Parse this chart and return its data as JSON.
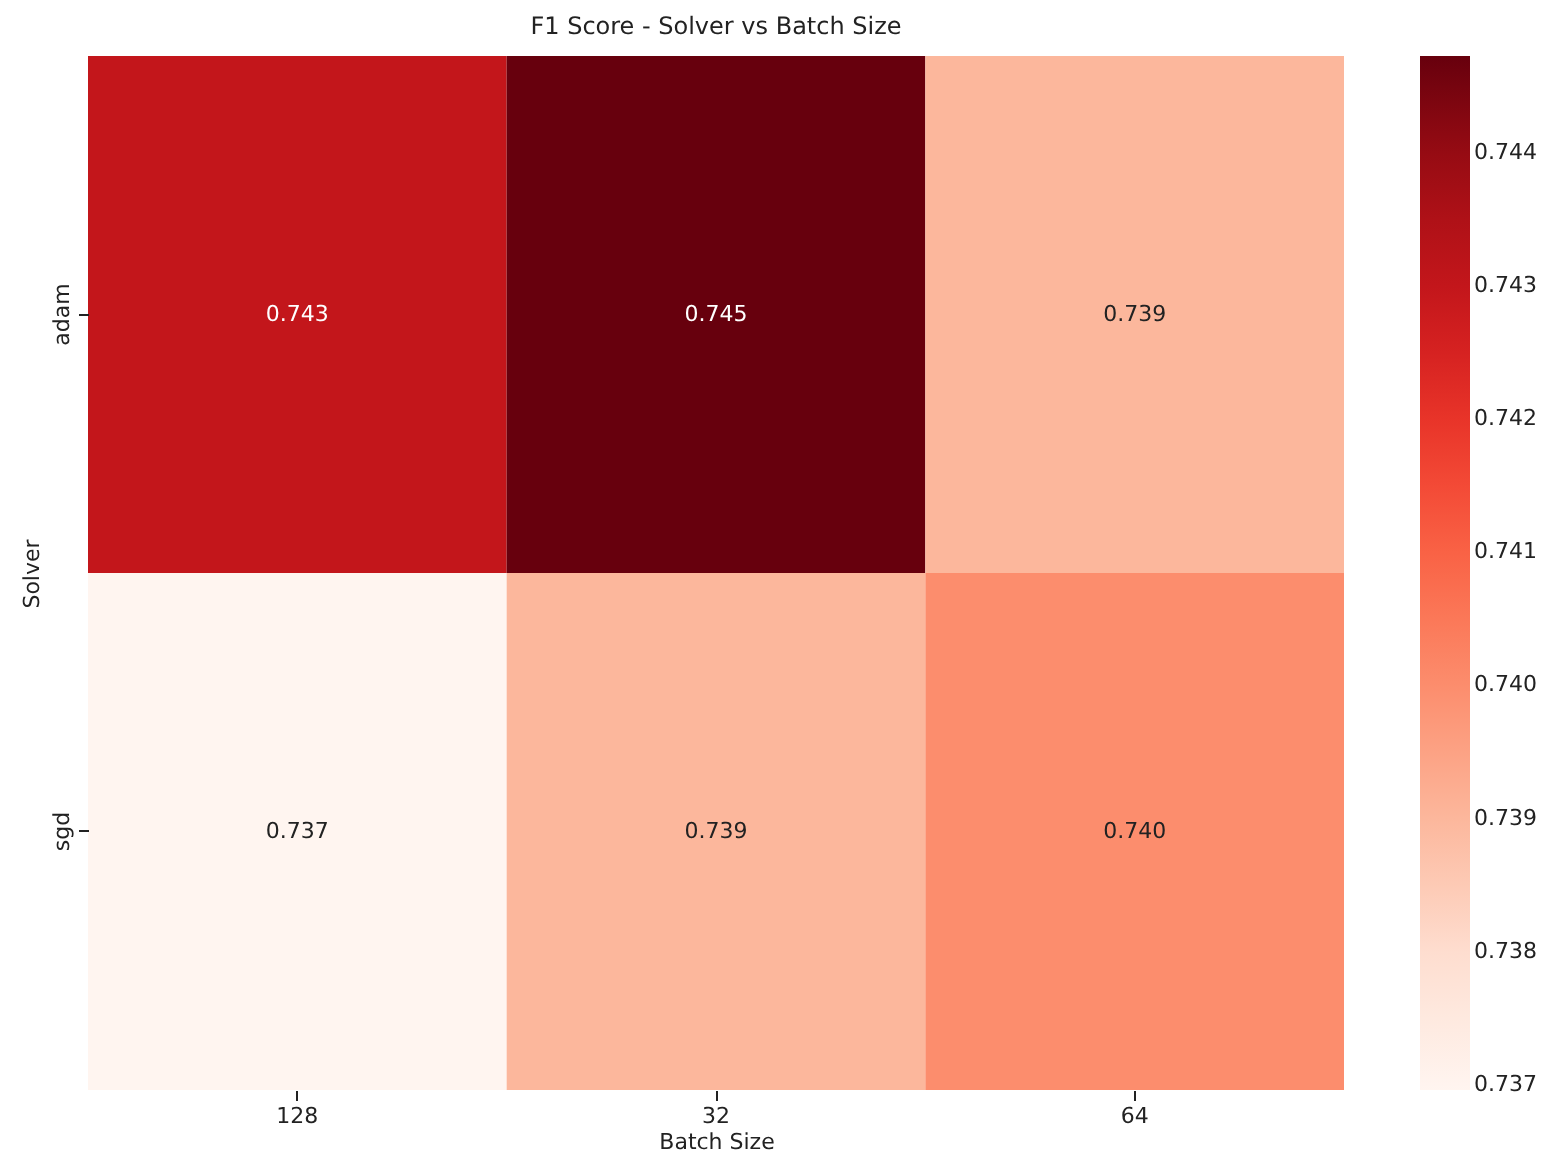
{
  "chart_data": {
    "type": "heatmap",
    "title": "F1 Score - Solver vs Batch Size",
    "xlabel": "Batch Size",
    "ylabel": "Solver",
    "categories": [
      "128",
      "32",
      "64"
    ],
    "y_categories": [
      "adam",
      "sgd"
    ],
    "cells": [
      [
        0.743,
        0.74473,
        0.739
      ],
      [
        0.73696,
        0.739,
        0.74
      ]
    ],
    "cell_labels": [
      [
        "0.743",
        "0.745",
        "0.739"
      ],
      [
        "0.737",
        "0.739",
        "0.740"
      ]
    ],
    "clim": [
      0.73696,
      0.74473
    ],
    "cticks": [
      0.737,
      0.738,
      0.739,
      {
        "value": 0.74,
        "label": "0.740"
      },
      0.741,
      0.742,
      0.743,
      0.744
    ]
  }
}
